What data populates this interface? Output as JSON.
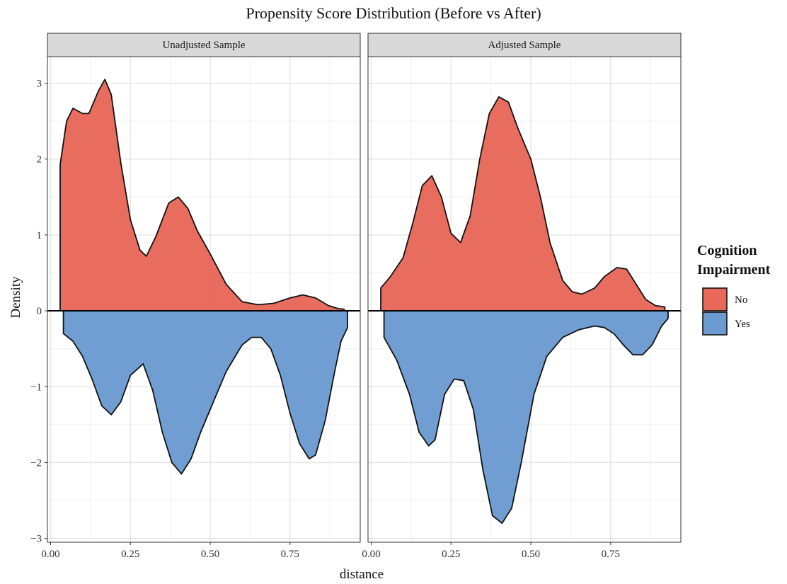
{
  "chart_data": {
    "type": "area",
    "title": "Propensity Score Distribution (Before vs After)",
    "xlabel": "distance",
    "ylabel": "Density",
    "xlim": [
      -0.01,
      0.97
    ],
    "ylim": [
      -3.05,
      3.35
    ],
    "xticks": [
      0.0,
      0.25,
      0.5,
      0.75
    ],
    "xtick_labels": [
      "0.00",
      "0.25",
      "0.50",
      "0.75"
    ],
    "yticks": [
      -3,
      -2,
      -1,
      0,
      1,
      2,
      3
    ],
    "ytick_labels": [
      "−3",
      "−2",
      "−1",
      "0",
      "1",
      "2",
      "3"
    ],
    "grid": true,
    "legend": {
      "title_lines": [
        "Cognition",
        "Impairment"
      ],
      "placement": "right",
      "entries": [
        {
          "label": "No",
          "color": "#E8685A"
        },
        {
          "label": "Yes",
          "color": "#6B9BD1"
        }
      ]
    },
    "panels": [
      {
        "strip": "Unadjusted Sample",
        "series": [
          {
            "name": "No",
            "direction": 1,
            "color": "#E8685A",
            "x": [
              0.03,
              0.05,
              0.07,
              0.1,
              0.12,
              0.15,
              0.17,
              0.19,
              0.22,
              0.25,
              0.28,
              0.3,
              0.33,
              0.37,
              0.4,
              0.43,
              0.46,
              0.5,
              0.55,
              0.6,
              0.65,
              0.7,
              0.75,
              0.79,
              0.83,
              0.87,
              0.9,
              0.92
            ],
            "y": [
              1.93,
              2.5,
              2.67,
              2.6,
              2.6,
              2.9,
              3.05,
              2.85,
              1.95,
              1.2,
              0.8,
              0.72,
              0.98,
              1.42,
              1.5,
              1.35,
              1.05,
              0.75,
              0.35,
              0.12,
              0.08,
              0.1,
              0.17,
              0.21,
              0.17,
              0.07,
              0.03,
              0.02
            ]
          },
          {
            "name": "Yes",
            "direction": -1,
            "color": "#6B9BD1",
            "x": [
              0.04,
              0.07,
              0.1,
              0.13,
              0.16,
              0.19,
              0.22,
              0.25,
              0.29,
              0.32,
              0.35,
              0.38,
              0.41,
              0.44,
              0.47,
              0.5,
              0.55,
              0.6,
              0.63,
              0.66,
              0.69,
              0.72,
              0.75,
              0.78,
              0.81,
              0.83,
              0.86,
              0.89,
              0.91,
              0.93
            ],
            "y": [
              0.3,
              0.4,
              0.6,
              0.9,
              1.25,
              1.37,
              1.2,
              0.85,
              0.7,
              1.05,
              1.6,
              2.0,
              2.15,
              1.95,
              1.6,
              1.3,
              0.8,
              0.45,
              0.35,
              0.35,
              0.5,
              0.85,
              1.35,
              1.75,
              1.95,
              1.9,
              1.45,
              0.8,
              0.4,
              0.22
            ]
          }
        ]
      },
      {
        "strip": "Adjusted Sample",
        "series": [
          {
            "name": "No",
            "direction": 1,
            "color": "#E8685A",
            "x": [
              0.03,
              0.06,
              0.1,
              0.13,
              0.16,
              0.19,
              0.22,
              0.25,
              0.28,
              0.31,
              0.34,
              0.37,
              0.4,
              0.43,
              0.46,
              0.5,
              0.53,
              0.56,
              0.6,
              0.63,
              0.66,
              0.7,
              0.73,
              0.77,
              0.8,
              0.83,
              0.86,
              0.89,
              0.92
            ],
            "y": [
              0.3,
              0.45,
              0.7,
              1.15,
              1.65,
              1.78,
              1.5,
              1.02,
              0.9,
              1.25,
              2.0,
              2.6,
              2.82,
              2.75,
              2.4,
              2.0,
              1.5,
              0.9,
              0.4,
              0.25,
              0.22,
              0.3,
              0.45,
              0.57,
              0.55,
              0.35,
              0.15,
              0.07,
              0.05
            ]
          },
          {
            "name": "Yes",
            "direction": -1,
            "color": "#6B9BD1",
            "x": [
              0.04,
              0.08,
              0.12,
              0.15,
              0.18,
              0.2,
              0.23,
              0.26,
              0.29,
              0.32,
              0.35,
              0.38,
              0.41,
              0.44,
              0.47,
              0.51,
              0.55,
              0.6,
              0.65,
              0.7,
              0.73,
              0.76,
              0.79,
              0.82,
              0.85,
              0.88,
              0.91,
              0.93
            ],
            "y": [
              0.35,
              0.65,
              1.1,
              1.6,
              1.78,
              1.7,
              1.1,
              0.9,
              0.92,
              1.3,
              2.1,
              2.7,
              2.8,
              2.6,
              2.0,
              1.1,
              0.6,
              0.35,
              0.25,
              0.2,
              0.22,
              0.3,
              0.45,
              0.58,
              0.58,
              0.45,
              0.2,
              0.1
            ]
          }
        ]
      }
    ]
  }
}
